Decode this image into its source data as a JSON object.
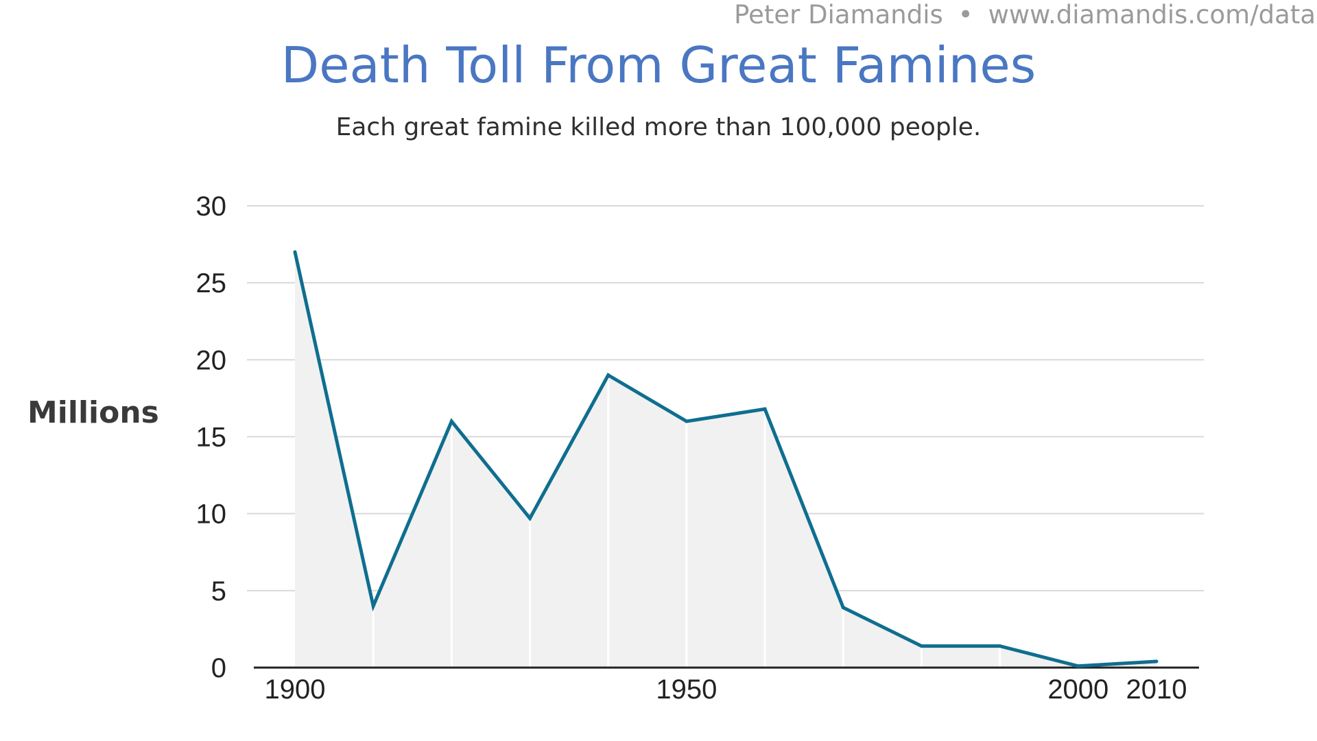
{
  "header": {
    "author": "Peter Diamandis",
    "separator": "•",
    "url": "www.diamandis.com/data"
  },
  "chart_data": {
    "type": "area",
    "title": "Death Toll From Great Famines",
    "subtitle": "Each great famine killed more than 100,000 people.",
    "ylabel": "Millions",
    "xlabel": "",
    "x": [
      1900,
      1910,
      1920,
      1930,
      1940,
      1950,
      1960,
      1970,
      1980,
      1990,
      2000,
      2010
    ],
    "series": [
      {
        "values": [
          27,
          4,
          16,
          9.7,
          19,
          16,
          16.8,
          3.9,
          1.4,
          1.4,
          0.1,
          0.4
        ]
      }
    ],
    "xlim": [
      1900,
      2010
    ],
    "ylim": [
      0,
      30
    ],
    "xticks": [
      1900,
      1950,
      2000,
      2010
    ],
    "yticks": [
      0,
      5,
      10,
      15,
      20,
      25,
      30
    ],
    "grid": "horizontal",
    "colors": {
      "line": "#0f6e8f",
      "area": "#f1f1f1",
      "grid": "#d9d9d9",
      "vertical_dividers": "#ffffff",
      "axis": "#222222"
    }
  }
}
